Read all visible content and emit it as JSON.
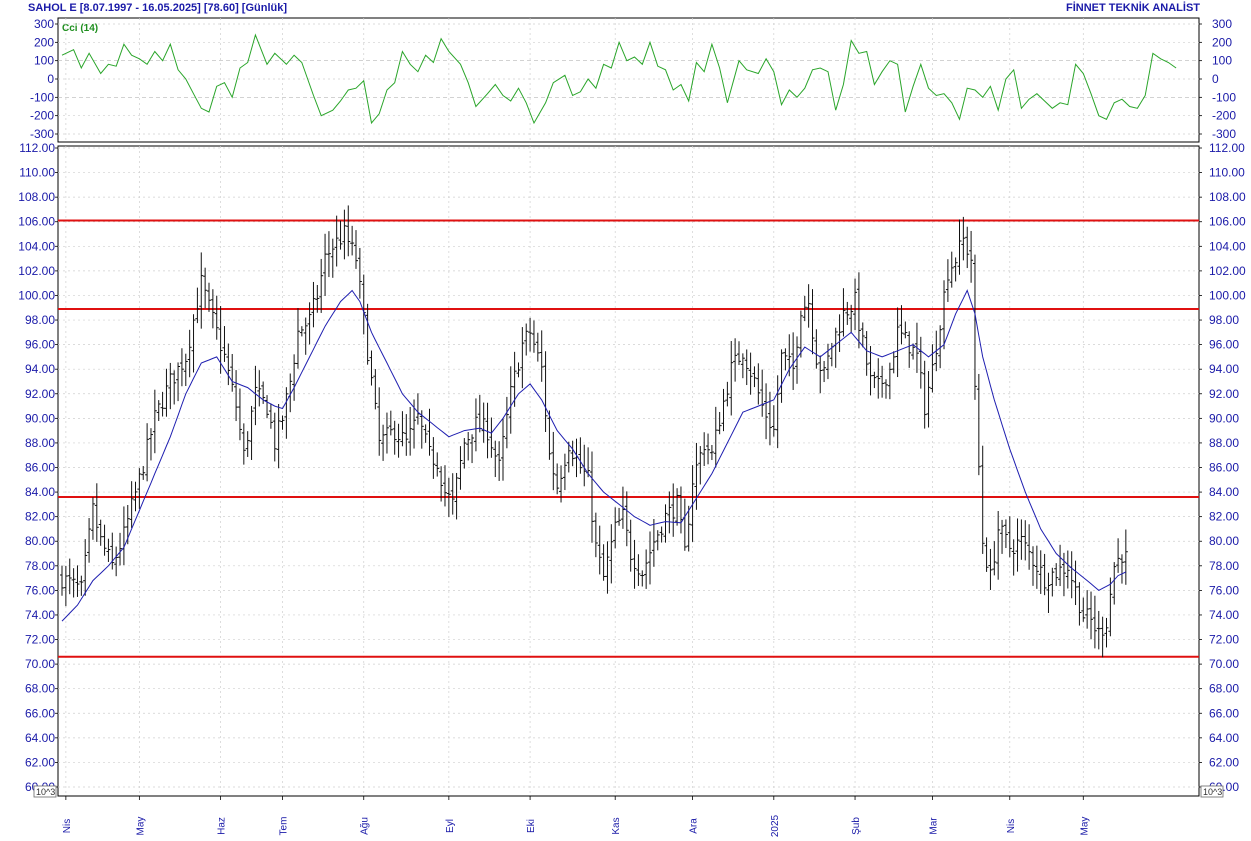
{
  "header": {
    "left_text": "SAHOL E  [8.07.1997 - 16.05.2025]  [78.60]  [Günlük]",
    "right_text": "FİNNET TEKNİK ANALİST"
  },
  "colors": {
    "axis_text": "#1a1aa8",
    "price_bars": "#111111",
    "moving_average": "#1f1fb0",
    "levels": "#e01010",
    "cci_line": "#2aa52a",
    "grid": "#cfcfcf"
  },
  "chart_data": [
    {
      "type": "line",
      "panel": "indicator",
      "title": "Cci (14)",
      "ylim": [
        -300,
        300
      ],
      "yticks": [
        300,
        200,
        100,
        0,
        -100,
        -200,
        -300
      ],
      "yticklabels": [
        "300",
        "200",
        "100",
        "0",
        "-100",
        "-200",
        "-300"
      ],
      "reference_lines": [
        100,
        -100
      ],
      "grid": true,
      "series": [
        {
          "name": "Cci (14)",
          "x_index": [
            0,
            3,
            5,
            7,
            10,
            12,
            14,
            16,
            18,
            20,
            22,
            24,
            26,
            28,
            30,
            32,
            34,
            36,
            38,
            40,
            42,
            44,
            46,
            48,
            50,
            53,
            55,
            58,
            60,
            62,
            65,
            67,
            70,
            72,
            74,
            76,
            78,
            80,
            82,
            84,
            86,
            88,
            90,
            92,
            94,
            96,
            98,
            100,
            103,
            105,
            107,
            110,
            112,
            114,
            116,
            118,
            120,
            122,
            125,
            127,
            130,
            132,
            134,
            136,
            138,
            140,
            142,
            144,
            146,
            148,
            150,
            152,
            154,
            156,
            158,
            160,
            162,
            164,
            166,
            168,
            170,
            172,
            175,
            177,
            180,
            182,
            184,
            186,
            188,
            190,
            192,
            194,
            196,
            198,
            200,
            202,
            204,
            206,
            208,
            210,
            212,
            214,
            216,
            218,
            220,
            222,
            224,
            226,
            228,
            230,
            232,
            234,
            236,
            238,
            240,
            242,
            244,
            246,
            248,
            250,
            252,
            254,
            256,
            258,
            260,
            262,
            264,
            266,
            268,
            270,
            272,
            274,
            276,
            278,
            280,
            282,
            284,
            286,
            288
          ],
          "values": [
            130,
            160,
            60,
            140,
            30,
            80,
            70,
            190,
            130,
            110,
            80,
            150,
            100,
            190,
            50,
            0,
            -80,
            -160,
            -180,
            -40,
            -20,
            -100,
            60,
            90,
            240,
            80,
            140,
            80,
            130,
            90,
            -90,
            -200,
            -170,
            -120,
            -60,
            -50,
            -10,
            -240,
            -190,
            -60,
            -20,
            150,
            80,
            40,
            130,
            90,
            220,
            150,
            80,
            -20,
            -150,
            -80,
            -30,
            -90,
            -120,
            -50,
            -130,
            -240,
            -130,
            -20,
            20,
            -90,
            -70,
            0,
            -50,
            80,
            60,
            200,
            100,
            120,
            80,
            200,
            70,
            50,
            -60,
            -30,
            -120,
            90,
            40,
            190,
            60,
            -130,
            100,
            50,
            30,
            110,
            40,
            -140,
            -60,
            -100,
            -50,
            50,
            60,
            40,
            -170,
            -30,
            210,
            140,
            150,
            -30,
            40,
            100,
            80,
            -180,
            -40,
            80,
            -50,
            -90,
            -80,
            -130,
            -220,
            -50,
            -60,
            -100,
            -40,
            -170,
            0,
            50,
            -160,
            -110,
            -80,
            -120,
            -160,
            -130,
            -140,
            80,
            30,
            -80,
            -200,
            -220,
            -130,
            -110,
            -150,
            -160,
            -90,
            140,
            110,
            90,
            60
          ]
        }
      ]
    },
    {
      "type": "bar",
      "subtype": "ohlc",
      "panel": "price",
      "ylim": [
        60,
        112
      ],
      "yticks": [
        112,
        110,
        108,
        106,
        104,
        102,
        100,
        98,
        96,
        94,
        92,
        90,
        88,
        86,
        84,
        82,
        80,
        78,
        76,
        74,
        72,
        70,
        68,
        66,
        64,
        62,
        60
      ],
      "yticklabels": [
        "112.00",
        "110.00",
        "108.00",
        "106.00",
        "104.00",
        "102.00",
        "100.00",
        "98.00",
        "96.00",
        "94.00",
        "92.00",
        "90.00",
        "88.00",
        "86.00",
        "84.00",
        "82.00",
        "80.00",
        "78.00",
        "76.00",
        "74.00",
        "72.00",
        "70.00",
        "68.00",
        "66.00",
        "64.00",
        "62.00",
        "60.00"
      ],
      "unit_label": "10^3",
      "grid": true,
      "x_count": 290,
      "xticks": [
        {
          "label": "Nis",
          "index": 1
        },
        {
          "label": "May",
          "index": 20
        },
        {
          "label": "Haz",
          "index": 41
        },
        {
          "label": "Tem",
          "index": 57
        },
        {
          "label": "Ağu",
          "index": 78
        },
        {
          "label": "Eyl",
          "index": 100
        },
        {
          "label": "Eki",
          "index": 121
        },
        {
          "label": "Kas",
          "index": 143
        },
        {
          "label": "Ara",
          "index": 163
        },
        {
          "label": "2025",
          "index": 184
        },
        {
          "label": "Şub",
          "index": 205
        },
        {
          "label": "Mar",
          "index": 225
        },
        {
          "label": "Nis",
          "index": 245
        },
        {
          "label": "May",
          "index": 264
        }
      ],
      "horizontal_levels": [
        106.1,
        98.9,
        83.6,
        70.6
      ],
      "close_keypoints": [
        {
          "i": 0,
          "v": 77.0
        },
        {
          "i": 5,
          "v": 76.0
        },
        {
          "i": 8,
          "v": 82.5
        },
        {
          "i": 10,
          "v": 80.0
        },
        {
          "i": 13,
          "v": 78.0
        },
        {
          "i": 16,
          "v": 80.5
        },
        {
          "i": 20,
          "v": 85.0
        },
        {
          "i": 24,
          "v": 90.0
        },
        {
          "i": 28,
          "v": 93.0
        },
        {
          "i": 32,
          "v": 95.0
        },
        {
          "i": 34,
          "v": 98.0
        },
        {
          "i": 36,
          "v": 101.0
        },
        {
          "i": 39,
          "v": 98.0
        },
        {
          "i": 42,
          "v": 95.0
        },
        {
          "i": 45,
          "v": 91.0
        },
        {
          "i": 47,
          "v": 87.0
        },
        {
          "i": 50,
          "v": 92.0
        },
        {
          "i": 53,
          "v": 91.0
        },
        {
          "i": 55,
          "v": 88.0
        },
        {
          "i": 57,
          "v": 90.0
        },
        {
          "i": 59,
          "v": 93.0
        },
        {
          "i": 61,
          "v": 97.0
        },
        {
          "i": 64,
          "v": 98.0
        },
        {
          "i": 66,
          "v": 100.0
        },
        {
          "i": 68,
          "v": 103.0
        },
        {
          "i": 70,
          "v": 104.0
        },
        {
          "i": 73,
          "v": 105.0
        },
        {
          "i": 76,
          "v": 103.0
        },
        {
          "i": 78,
          "v": 98.0
        },
        {
          "i": 80,
          "v": 93.0
        },
        {
          "i": 82,
          "v": 88.0
        },
        {
          "i": 86,
          "v": 89.0
        },
        {
          "i": 89,
          "v": 88.0
        },
        {
          "i": 92,
          "v": 90.0
        },
        {
          "i": 95,
          "v": 87.0
        },
        {
          "i": 97,
          "v": 86.5
        },
        {
          "i": 99,
          "v": 84.0
        },
        {
          "i": 101,
          "v": 83.0
        },
        {
          "i": 104,
          "v": 88.0
        },
        {
          "i": 107,
          "v": 89.5
        },
        {
          "i": 110,
          "v": 89.0
        },
        {
          "i": 113,
          "v": 86.0
        },
        {
          "i": 116,
          "v": 92.0
        },
        {
          "i": 119,
          "v": 96.0
        },
        {
          "i": 121,
          "v": 97.0
        },
        {
          "i": 124,
          "v": 94.0
        },
        {
          "i": 126,
          "v": 87.0
        },
        {
          "i": 128,
          "v": 84.5
        },
        {
          "i": 131,
          "v": 88.0
        },
        {
          "i": 134,
          "v": 86.0
        },
        {
          "i": 136,
          "v": 85.0
        },
        {
          "i": 138,
          "v": 79.5
        },
        {
          "i": 140,
          "v": 77.0
        },
        {
          "i": 143,
          "v": 81.0
        },
        {
          "i": 145,
          "v": 82.0
        },
        {
          "i": 147,
          "v": 79.0
        },
        {
          "i": 150,
          "v": 77.5
        },
        {
          "i": 153,
          "v": 80.0
        },
        {
          "i": 156,
          "v": 82.0
        },
        {
          "i": 159,
          "v": 83.0
        },
        {
          "i": 161,
          "v": 79.0
        },
        {
          "i": 163,
          "v": 85.0
        },
        {
          "i": 166,
          "v": 88.0
        },
        {
          "i": 168,
          "v": 87.0
        },
        {
          "i": 170,
          "v": 90.0
        },
        {
          "i": 173,
          "v": 94.0
        },
        {
          "i": 176,
          "v": 95.5
        },
        {
          "i": 179,
          "v": 93.0
        },
        {
          "i": 181,
          "v": 91.0
        },
        {
          "i": 184,
          "v": 89.0
        },
        {
          "i": 186,
          "v": 95.0
        },
        {
          "i": 189,
          "v": 94.0
        },
        {
          "i": 191,
          "v": 99.0
        },
        {
          "i": 193,
          "v": 99.5
        },
        {
          "i": 195,
          "v": 95.0
        },
        {
          "i": 197,
          "v": 93.5
        },
        {
          "i": 199,
          "v": 96.0
        },
        {
          "i": 202,
          "v": 98.5
        },
        {
          "i": 205,
          "v": 99.5
        },
        {
          "i": 207,
          "v": 96.0
        },
        {
          "i": 209,
          "v": 93.0
        },
        {
          "i": 211,
          "v": 92.5
        },
        {
          "i": 214,
          "v": 94.0
        },
        {
          "i": 216,
          "v": 97.0
        },
        {
          "i": 219,
          "v": 96.0
        },
        {
          "i": 221,
          "v": 95.0
        },
        {
          "i": 223,
          "v": 91.0
        },
        {
          "i": 225,
          "v": 94.0
        },
        {
          "i": 227,
          "v": 98.0
        },
        {
          "i": 229,
          "v": 102.0
        },
        {
          "i": 231,
          "v": 103.0
        },
        {
          "i": 233,
          "v": 104.5
        },
        {
          "i": 235,
          "v": 103.0
        },
        {
          "i": 236,
          "v": 92.0
        },
        {
          "i": 237,
          "v": 86.0
        },
        {
          "i": 238,
          "v": 80.0
        },
        {
          "i": 240,
          "v": 77.0
        },
        {
          "i": 242,
          "v": 81.0
        },
        {
          "i": 245,
          "v": 79.5
        },
        {
          "i": 248,
          "v": 80.0
        },
        {
          "i": 251,
          "v": 78.5
        },
        {
          "i": 254,
          "v": 77.0
        },
        {
          "i": 257,
          "v": 77.5
        },
        {
          "i": 260,
          "v": 78.0
        },
        {
          "i": 262,
          "v": 76.0
        },
        {
          "i": 264,
          "v": 74.0
        },
        {
          "i": 266,
          "v": 73.5
        },
        {
          "i": 268,
          "v": 72.5
        },
        {
          "i": 270,
          "v": 73.5
        },
        {
          "i": 272,
          "v": 78.0
        },
        {
          "i": 274,
          "v": 79.0
        },
        {
          "i": 275,
          "v": 78.6
        }
      ],
      "moving_average": {
        "name": "moving average",
        "keypoints": [
          {
            "i": 0,
            "v": 73.5
          },
          {
            "i": 4,
            "v": 74.8
          },
          {
            "i": 8,
            "v": 76.8
          },
          {
            "i": 12,
            "v": 78.0
          },
          {
            "i": 16,
            "v": 79.5
          },
          {
            "i": 20,
            "v": 82.5
          },
          {
            "i": 24,
            "v": 85.5
          },
          {
            "i": 28,
            "v": 88.5
          },
          {
            "i": 32,
            "v": 92.0
          },
          {
            "i": 36,
            "v": 94.5
          },
          {
            "i": 40,
            "v": 95.0
          },
          {
            "i": 44,
            "v": 93.0
          },
          {
            "i": 48,
            "v": 92.5
          },
          {
            "i": 52,
            "v": 91.5
          },
          {
            "i": 55,
            "v": 91.0
          },
          {
            "i": 57,
            "v": 90.8
          },
          {
            "i": 60,
            "v": 92.5
          },
          {
            "i": 64,
            "v": 95.0
          },
          {
            "i": 68,
            "v": 97.5
          },
          {
            "i": 72,
            "v": 99.5
          },
          {
            "i": 75,
            "v": 100.4
          },
          {
            "i": 77,
            "v": 99.5
          },
          {
            "i": 80,
            "v": 97.0
          },
          {
            "i": 84,
            "v": 94.5
          },
          {
            "i": 88,
            "v": 92.0
          },
          {
            "i": 92,
            "v": 90.5
          },
          {
            "i": 96,
            "v": 89.5
          },
          {
            "i": 100,
            "v": 88.5
          },
          {
            "i": 104,
            "v": 89.0
          },
          {
            "i": 108,
            "v": 89.2
          },
          {
            "i": 111,
            "v": 88.8
          },
          {
            "i": 114,
            "v": 90.0
          },
          {
            "i": 118,
            "v": 92.0
          },
          {
            "i": 121,
            "v": 92.8
          },
          {
            "i": 124,
            "v": 91.5
          },
          {
            "i": 128,
            "v": 89.0
          },
          {
            "i": 132,
            "v": 87.5
          },
          {
            "i": 136,
            "v": 85.5
          },
          {
            "i": 140,
            "v": 84.0
          },
          {
            "i": 144,
            "v": 83.0
          },
          {
            "i": 148,
            "v": 82.0
          },
          {
            "i": 152,
            "v": 81.3
          },
          {
            "i": 156,
            "v": 81.6
          },
          {
            "i": 160,
            "v": 81.5
          },
          {
            "i": 164,
            "v": 83.5
          },
          {
            "i": 168,
            "v": 85.5
          },
          {
            "i": 172,
            "v": 88.0
          },
          {
            "i": 176,
            "v": 90.5
          },
          {
            "i": 180,
            "v": 91.0
          },
          {
            "i": 184,
            "v": 91.5
          },
          {
            "i": 188,
            "v": 94.0
          },
          {
            "i": 192,
            "v": 95.8
          },
          {
            "i": 196,
            "v": 95.0
          },
          {
            "i": 200,
            "v": 96.0
          },
          {
            "i": 204,
            "v": 97.0
          },
          {
            "i": 208,
            "v": 95.5
          },
          {
            "i": 212,
            "v": 95.0
          },
          {
            "i": 216,
            "v": 95.5
          },
          {
            "i": 220,
            "v": 96.0
          },
          {
            "i": 224,
            "v": 95.0
          },
          {
            "i": 228,
            "v": 96.0
          },
          {
            "i": 231,
            "v": 98.5
          },
          {
            "i": 234,
            "v": 100.4
          },
          {
            "i": 236,
            "v": 98.5
          },
          {
            "i": 238,
            "v": 95.0
          },
          {
            "i": 241,
            "v": 91.5
          },
          {
            "i": 245,
            "v": 87.5
          },
          {
            "i": 249,
            "v": 84.0
          },
          {
            "i": 253,
            "v": 81.0
          },
          {
            "i": 257,
            "v": 79.0
          },
          {
            "i": 261,
            "v": 77.8
          },
          {
            "i": 265,
            "v": 76.8
          },
          {
            "i": 268,
            "v": 76.0
          },
          {
            "i": 271,
            "v": 76.5
          },
          {
            "i": 273,
            "v": 77.2
          },
          {
            "i": 275,
            "v": 77.5
          }
        ]
      }
    }
  ]
}
